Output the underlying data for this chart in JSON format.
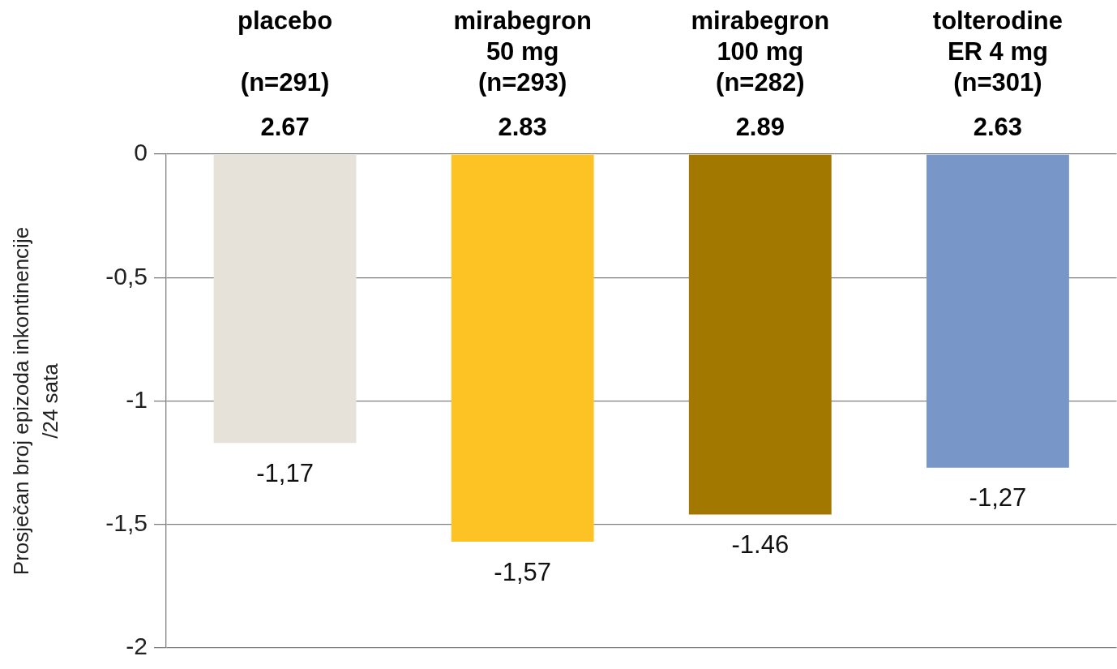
{
  "chart_data": {
    "type": "bar",
    "categories": [
      "placebo\n\n(n=291)",
      "mirabegron\n50 mg\n(n=293)",
      "mirabegron\n100 mg\n(n=282)",
      "tolterodine\nER 4 mg\n(n=301)"
    ],
    "values": [
      -1.17,
      -1.57,
      -1.46,
      -1.27
    ],
    "colors": [
      "#e6e2da",
      "#fdc325",
      "#a37800",
      "#7896c8"
    ],
    "value_labels": [
      "-1,17",
      "-1,57",
      "-1.46",
      "-1,27"
    ],
    "ylabel": "Prosječan broj epizoda inkontinencije\n/24 sata",
    "ylim": [
      -2,
      0
    ],
    "yticks": [
      0,
      {
        "value": -0.5,
        "label": "-0,5"
      },
      -1,
      {
        "value": -1.5,
        "label": "-1,5"
      },
      -2
    ],
    "grid": "y",
    "annotations": [
      "2.67",
      "2.83",
      "2.89",
      "2.63"
    ]
  }
}
